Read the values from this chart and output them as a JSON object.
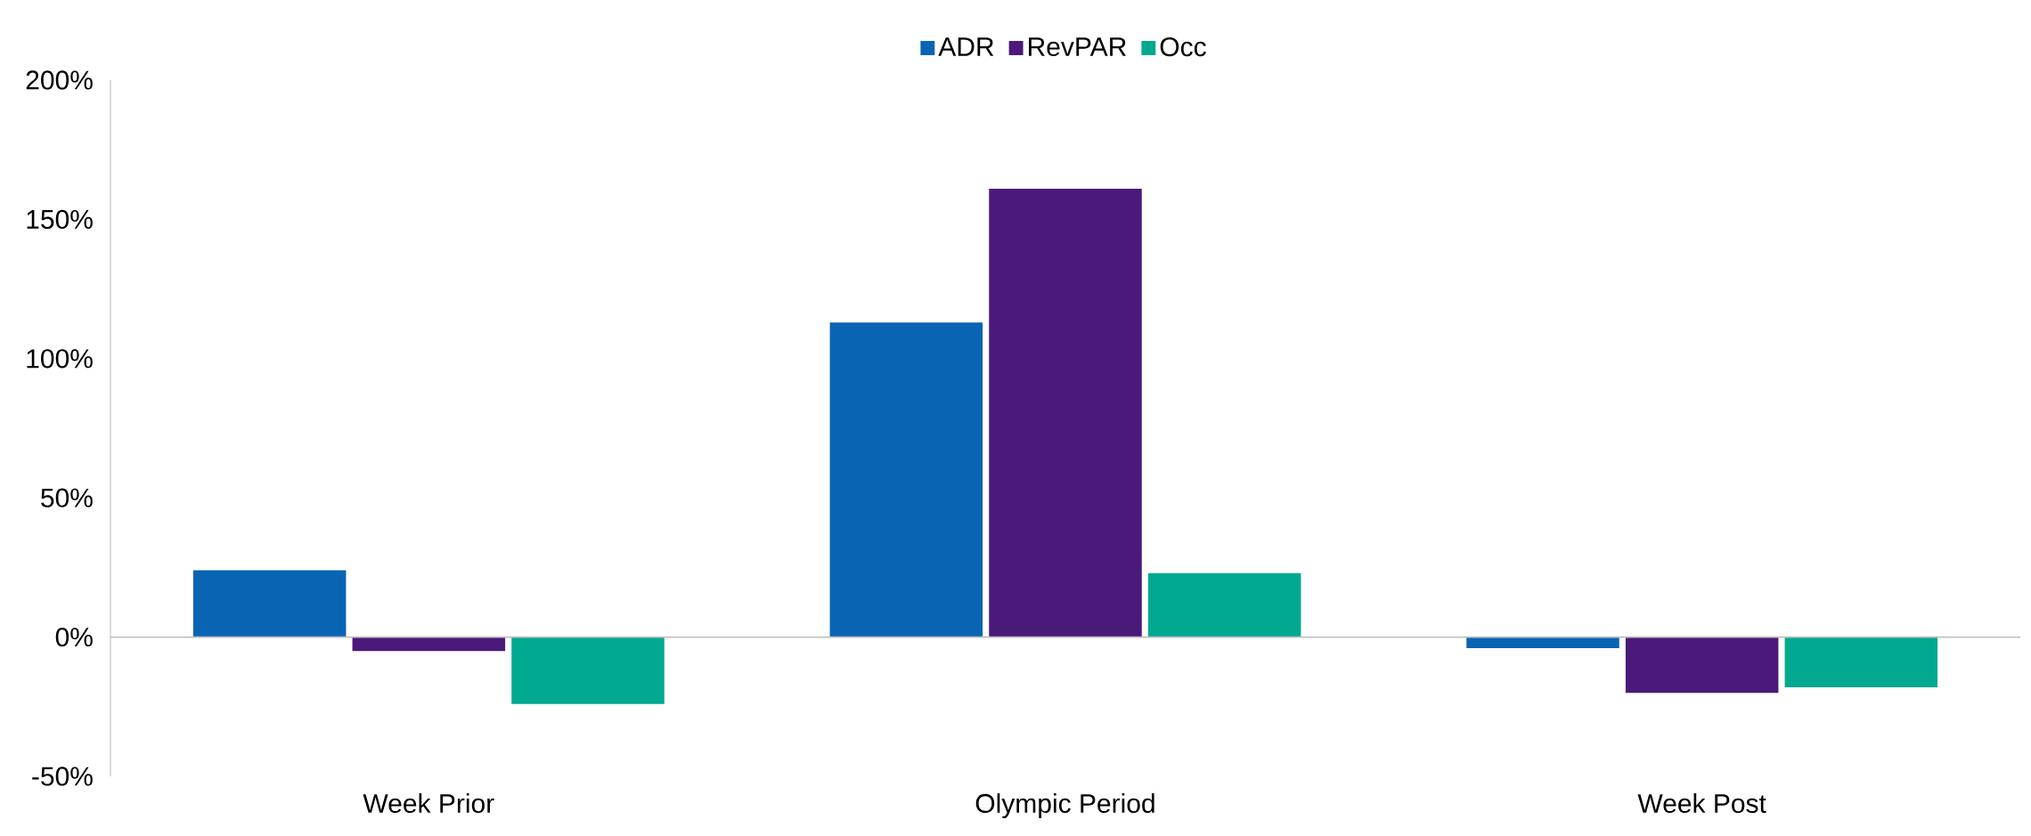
{
  "chart_data": {
    "type": "bar",
    "categories": [
      "Week Prior",
      "Olympic Period",
      "Week Post"
    ],
    "series": [
      {
        "name": "ADR",
        "color": "#0a64b4",
        "values": [
          24,
          113,
          -4
        ]
      },
      {
        "name": "RevPAR",
        "color": "#4a1a7a",
        "values": [
          -5,
          161,
          -20
        ]
      },
      {
        "name": "Occ",
        "color": "#00a98f",
        "values": [
          -24,
          23,
          -18
        ]
      }
    ],
    "ylim": [
      -50,
      200
    ],
    "yticks": [
      {
        "value": -50,
        "label": "-50%"
      },
      {
        "value": 0,
        "label": "0%"
      },
      {
        "value": 50,
        "label": "50%"
      },
      {
        "value": 100,
        "label": "100%"
      },
      {
        "value": 150,
        "label": "150%"
      },
      {
        "value": 200,
        "label": "200%"
      }
    ],
    "legend": "top"
  }
}
